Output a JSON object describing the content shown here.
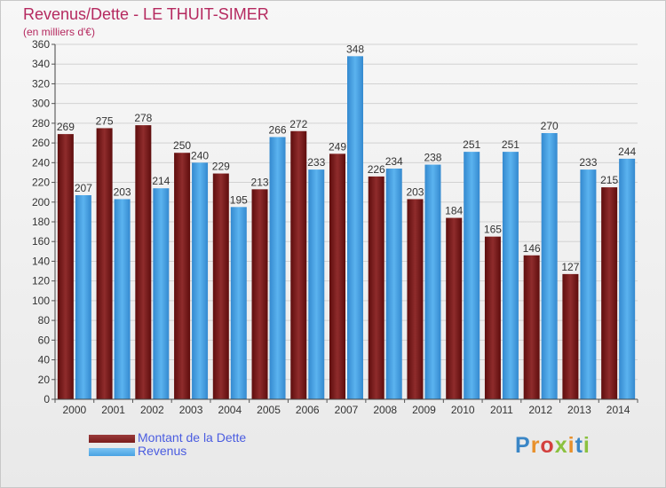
{
  "title": "Revenus/Dette - LE THUIT-SIMER",
  "subtitle": "(en milliers d'€)",
  "logo": {
    "text": "Proxiti",
    "letters": [
      {
        "ch": "P",
        "color": "#3a86c6"
      },
      {
        "ch": "r",
        "color": "#e8902b"
      },
      {
        "ch": "o",
        "color": "#d3403e"
      },
      {
        "ch": "x",
        "color": "#8bc13f"
      },
      {
        "ch": "i",
        "color": "#e8902b"
      },
      {
        "ch": "t",
        "color": "#3a86c6"
      },
      {
        "ch": "i",
        "color": "#8bc13f"
      }
    ]
  },
  "legend": {
    "items": [
      {
        "label": "Montant de la Dette",
        "color": "#7a1c1c"
      },
      {
        "label": "Revenus",
        "color": "#49a2e3"
      }
    ]
  },
  "chart_data": {
    "type": "bar",
    "categories": [
      "2000",
      "2001",
      "2002",
      "2003",
      "2004",
      "2005",
      "2006",
      "2007",
      "2008",
      "2009",
      "2010",
      "2011",
      "2012",
      "2013",
      "2014"
    ],
    "series": [
      {
        "name": "Montant de la Dette",
        "color": "#7a1c1c",
        "values": [
          269,
          275,
          278,
          250,
          229,
          213,
          272,
          249,
          226,
          203,
          184,
          165,
          146,
          127,
          215
        ]
      },
      {
        "name": "Revenus",
        "color": "#49a2e3",
        "values": [
          207,
          203,
          214,
          240,
          195,
          266,
          233,
          348,
          234,
          238,
          251,
          251,
          270,
          233,
          244
        ]
      }
    ],
    "ylim": [
      0,
      360
    ],
    "yticks": [
      0,
      20,
      40,
      60,
      80,
      100,
      120,
      140,
      160,
      180,
      200,
      220,
      240,
      260,
      280,
      300,
      320,
      340,
      360
    ],
    "grid": true,
    "legend_position": "bottom-left"
  }
}
